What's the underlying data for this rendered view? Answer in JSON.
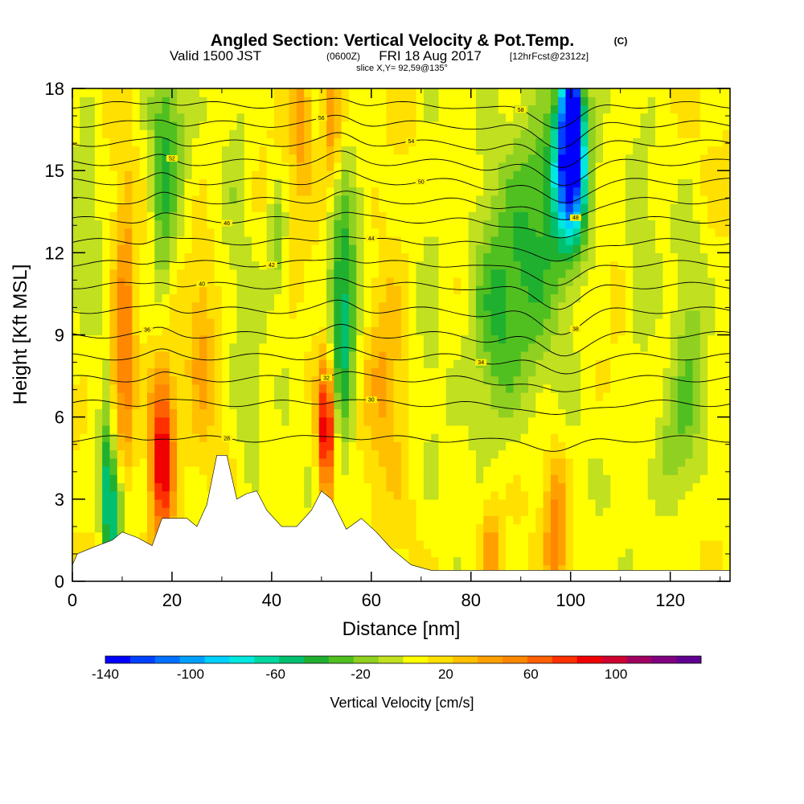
{
  "chart_data": {
    "type": "heatmap",
    "title": "Angled Section: Vertical Velocity & Pot.Temp.",
    "title_unit": "(C)",
    "subtitle_valid": "Valid 1500 JST",
    "subtitle_utc": "(0600Z)",
    "subtitle_date": "FRI 18 Aug 2017",
    "subtitle_fcst": "[12hrFcst@2312z]",
    "slice_label": "slice X,Y= 92,59@135°",
    "xlabel": "Distance [nm]",
    "ylabel": "Height [Kft MSL]",
    "xlim": [
      0,
      132
    ],
    "ylim": [
      0,
      18
    ],
    "x_ticks": [
      "0",
      "20",
      "40",
      "60",
      "80",
      "100",
      "120"
    ],
    "y_ticks": [
      "0",
      "3",
      "6",
      "9",
      "12",
      "15",
      "18"
    ],
    "colorbar_label": "Vertical Velocity [cm/s]",
    "colorbar_ticks": [
      "-140",
      "-100",
      "-60",
      "-20",
      "20",
      "60",
      "100"
    ],
    "colorbar_range": [
      -140,
      140
    ],
    "colorbar_colors": [
      "#0000ff",
      "#0040ff",
      "#0070ff",
      "#00a0ff",
      "#00d0ff",
      "#00e8e0",
      "#00d8a0",
      "#00c070",
      "#20b030",
      "#50c020",
      "#90d020",
      "#c0e020",
      "#ffff00",
      "#ffe000",
      "#ffc000",
      "#ffa000",
      "#ff8800",
      "#ff6000",
      "#ff3000",
      "#f00000",
      "#d00030",
      "#a00060",
      "#800080",
      "#600090"
    ],
    "terrain": [
      [
        0,
        0.6
      ],
      [
        1,
        1.0
      ],
      [
        5,
        1.3
      ],
      [
        8,
        1.5
      ],
      [
        10,
        1.8
      ],
      [
        13,
        1.6
      ],
      [
        16,
        1.3
      ],
      [
        18,
        2.3
      ],
      [
        23,
        2.3
      ],
      [
        25,
        2.0
      ],
      [
        27,
        2.8
      ],
      [
        29,
        4.6
      ],
      [
        31,
        4.6
      ],
      [
        33,
        3.0
      ],
      [
        35,
        3.2
      ],
      [
        37,
        3.3
      ],
      [
        39,
        2.6
      ],
      [
        42,
        2.0
      ],
      [
        45,
        2.0
      ],
      [
        48,
        2.6
      ],
      [
        50,
        3.3
      ],
      [
        52,
        3.0
      ],
      [
        55,
        1.9
      ],
      [
        58,
        2.3
      ],
      [
        61,
        1.8
      ],
      [
        64,
        1.2
      ],
      [
        68,
        0.6
      ],
      [
        72,
        0.4
      ],
      [
        132,
        0.4
      ]
    ],
    "cells": [
      {
        "x": 7.5,
        "z": 3.5,
        "w": -90,
        "sx": 1.2,
        "sz": 2.5
      },
      {
        "x": 10.5,
        "z": 8,
        "w": 55,
        "sx": 1.5,
        "sz": 4
      },
      {
        "x": 18,
        "z": 4.5,
        "w": 90,
        "sx": 1.8,
        "sz": 2.5
      },
      {
        "x": 10,
        "z": 2.5,
        "w": -40,
        "sx": 1.2,
        "sz": 1.5
      },
      {
        "x": 19,
        "z": 16,
        "w": -35,
        "sx": 2.5,
        "sz": 2.5
      },
      {
        "x": 18,
        "z": 12,
        "w": -25,
        "sx": 1.5,
        "sz": 3
      },
      {
        "x": 41,
        "z": 12.5,
        "w": -30,
        "sx": 1.2,
        "sz": 1.5
      },
      {
        "x": 51,
        "z": 5.5,
        "w": 95,
        "sx": 1.2,
        "sz": 1.8
      },
      {
        "x": 54.5,
        "z": 10,
        "w": -45,
        "sx": 2.2,
        "sz": 3
      },
      {
        "x": 54,
        "z": 8.5,
        "w": -25,
        "sx": 1.5,
        "sz": 3.5
      },
      {
        "x": 85,
        "z": 9.5,
        "w": -45,
        "sx": 4,
        "sz": 3
      },
      {
        "x": 93,
        "z": 13,
        "w": -35,
        "sx": 4,
        "sz": 4
      },
      {
        "x": 100,
        "z": 16,
        "w": -110,
        "sx": 2,
        "sz": 2
      },
      {
        "x": 100,
        "z": 14.5,
        "w": -70,
        "sx": 3,
        "sz": 2
      },
      {
        "x": 100,
        "z": 17.5,
        "w": -130,
        "sx": 1,
        "sz": 1
      },
      {
        "x": 121,
        "z": 5,
        "w": -30,
        "sx": 3,
        "sz": 2
      },
      {
        "x": 114,
        "z": 11,
        "w": -18,
        "sx": 2,
        "sz": 3
      },
      {
        "x": 33,
        "z": 16,
        "w": -15,
        "sx": 2,
        "sz": 3
      },
      {
        "x": 46,
        "z": 17,
        "w": 35,
        "sx": 1.5,
        "sz": 2
      },
      {
        "x": 52,
        "z": 17,
        "w": 40,
        "sx": 1.5,
        "sz": 2
      },
      {
        "x": 97,
        "z": 2,
        "w": 45,
        "sx": 1.5,
        "sz": 2
      },
      {
        "x": 84,
        "z": 1,
        "w": 40,
        "sx": 1.5,
        "sz": 1.5
      },
      {
        "x": 63,
        "z": 8,
        "w": 30,
        "sx": 3,
        "sz": 3
      },
      {
        "x": 72,
        "z": 12,
        "w": -15,
        "sx": 2,
        "sz": 4
      },
      {
        "x": 124,
        "z": 9,
        "w": -20,
        "sx": 2,
        "sz": 3
      },
      {
        "x": 35,
        "z": 7,
        "w": -15,
        "sx": 2,
        "sz": 3
      },
      {
        "x": 3,
        "z": 14,
        "w": -15,
        "sx": 2,
        "sz": 3
      },
      {
        "x": 8,
        "z": 6,
        "w": 40,
        "sx": 1,
        "sz": 2
      },
      {
        "x": 26,
        "z": 9,
        "w": 25,
        "sx": 2,
        "sz": 3
      }
    ],
    "theta_contours": [
      {
        "label": "28",
        "label_x": 31,
        "base": 5.2
      },
      {
        "label": "30",
        "label_x": 60,
        "base": 6.5
      },
      {
        "label": "32",
        "label_x": 51,
        "base": 7.4
      },
      {
        "label": "34",
        "label_x": 82,
        "base": 8.2
      },
      {
        "label": "36",
        "label_x": 15,
        "base": 9.0
      },
      {
        "label": "38",
        "label_x": 101,
        "base": 9.9
      },
      {
        "label": "40",
        "label_x": 26,
        "base": 10.8
      },
      {
        "label": "42",
        "label_x": 40,
        "base": 11.6
      },
      {
        "label": "44",
        "label_x": 60,
        "base": 12.4
      },
      {
        "label": "46",
        "label_x": 31,
        "base": 13.2
      },
      {
        "label": "48",
        "label_x": 101,
        "base": 13.9
      },
      {
        "label": "50",
        "label_x": 70,
        "base": 14.6
      },
      {
        "label": "52",
        "label_x": 20,
        "base": 15.3
      },
      {
        "label": "54",
        "label_x": 68,
        "base": 16.0
      },
      {
        "label": "56",
        "label_x": 50,
        "base": 16.7
      },
      {
        "label": "58",
        "label_x": 90,
        "base": 17.4
      }
    ]
  }
}
